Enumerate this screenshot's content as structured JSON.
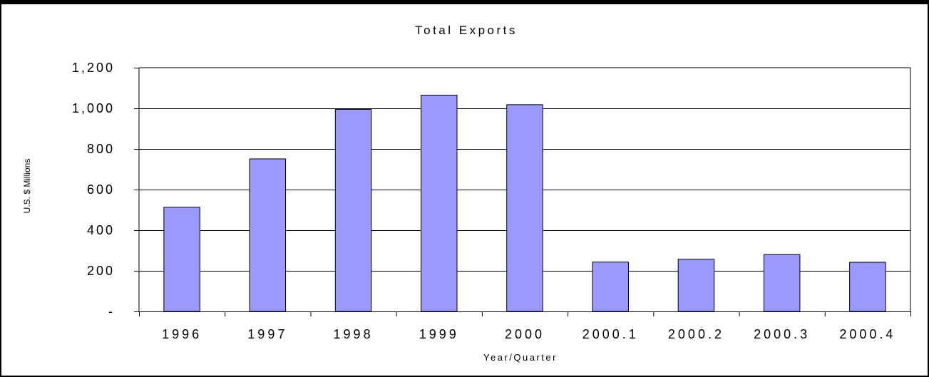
{
  "chart_data": {
    "type": "bar",
    "title": "Total Exports",
    "xlabel": "Year/Quarter",
    "ylabel": "U.S. $ Millions",
    "categories": [
      "1996",
      "1997",
      "1998",
      "1999",
      "2000",
      "2000.1",
      "2000.2",
      "2000.3",
      "2000.4"
    ],
    "values": [
      513,
      751,
      995,
      1065,
      1018,
      243,
      257,
      280,
      242
    ],
    "ylim": [
      0,
      1200
    ],
    "yticks": [
      0,
      200,
      400,
      600,
      800,
      1000,
      1200
    ],
    "ytick_labels": [
      "-",
      "200",
      "400",
      "600",
      "800",
      "1,000",
      "1,200"
    ],
    "grid": true,
    "legend": "none",
    "bar_color": "#9999ff",
    "bar_edge_color": "#000000"
  }
}
